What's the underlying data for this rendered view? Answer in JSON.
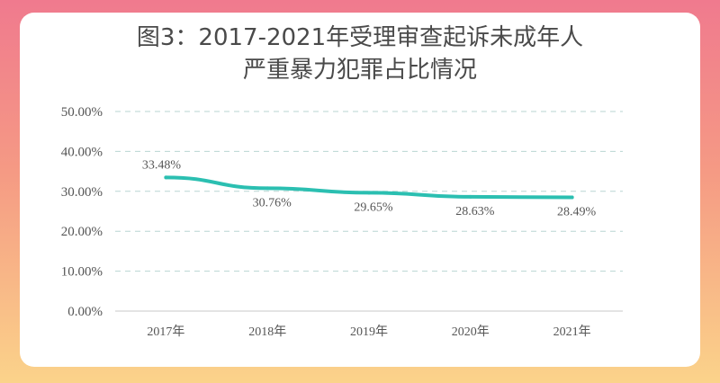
{
  "chart_data": {
    "type": "line",
    "title_line1": "图3：2017-2021年受理审查起诉未成年人",
    "title_line2": "严重暴力犯罪占比情况",
    "categories": [
      "2017年",
      "2018年",
      "2019年",
      "2020年",
      "2021年"
    ],
    "series": [
      {
        "values": [
          33.48,
          30.76,
          29.65,
          28.63,
          28.49
        ],
        "data_labels": [
          "33.48%",
          "30.76%",
          "29.65%",
          "28.63%",
          "28.49%"
        ]
      }
    ],
    "y_ticks": [
      "0.00%",
      "10.00%",
      "20.00%",
      "30.00%",
      "40.00%",
      "50.00%"
    ],
    "ylim": [
      0,
      50
    ],
    "grid": true,
    "line_color": "#2bbfb1",
    "grid_color": "#b9d6d2"
  }
}
